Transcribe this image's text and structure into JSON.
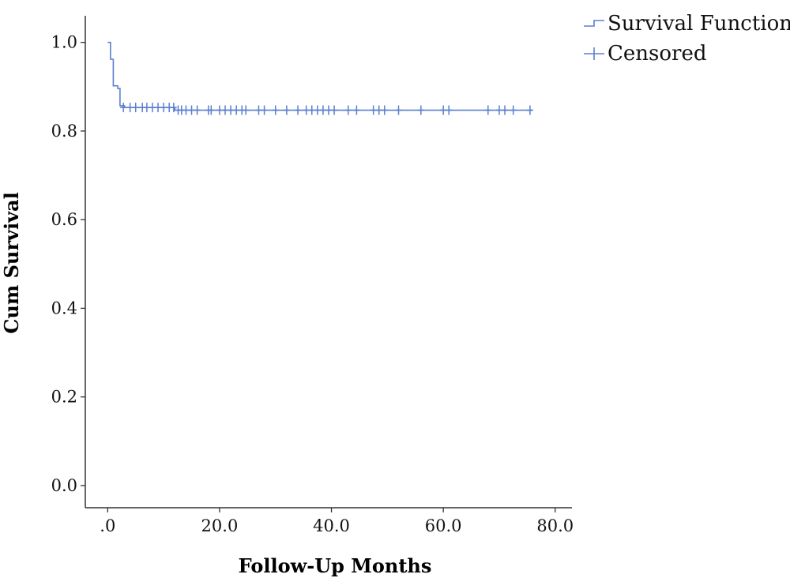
{
  "chart_data": {
    "type": "line",
    "title": "",
    "xlabel": "Follow-Up Months",
    "ylabel": "Cum Survival",
    "xlim": [
      -4,
      83
    ],
    "ylim": [
      -0.05,
      1.06
    ],
    "x_ticks": [
      0,
      20,
      40,
      60,
      80
    ],
    "x_tick_labels": [
      ".0",
      "20.0",
      "40.0",
      "60.0",
      "80.0"
    ],
    "y_ticks": [
      0,
      0.2,
      0.4,
      0.6,
      0.8,
      1.0
    ],
    "y_tick_labels": [
      "0.0",
      "0.2",
      "0.4",
      "0.6",
      "0.8",
      "1.0"
    ],
    "grid": false,
    "legend_position": "top-right",
    "legend": [
      "Survival Function",
      "Censored"
    ],
    "colors": {
      "series": "#5b7fd0",
      "axis": "#333333"
    },
    "series": [
      {
        "name": "Survival Function",
        "steps": [
          [
            0.0,
            1.0
          ],
          [
            0.5,
            0.962
          ],
          [
            1.0,
            0.902
          ],
          [
            1.8,
            0.896
          ],
          [
            2.2,
            0.857
          ],
          [
            3.0,
            0.853
          ],
          [
            12.0,
            0.847
          ],
          [
            76.0,
            0.847
          ]
        ]
      },
      {
        "name": "Censored",
        "points": [
          [
            2.8,
            0.853
          ],
          [
            4.0,
            0.853
          ],
          [
            5.0,
            0.853
          ],
          [
            6.2,
            0.853
          ],
          [
            7.0,
            0.853
          ],
          [
            8.0,
            0.853
          ],
          [
            9.0,
            0.853
          ],
          [
            10.0,
            0.853
          ],
          [
            11.0,
            0.853
          ],
          [
            11.8,
            0.853
          ],
          [
            12.6,
            0.847
          ],
          [
            13.2,
            0.847
          ],
          [
            14.0,
            0.847
          ],
          [
            15.0,
            0.847
          ],
          [
            16.0,
            0.847
          ],
          [
            18.0,
            0.847
          ],
          [
            18.5,
            0.847
          ],
          [
            20.0,
            0.847
          ],
          [
            21.0,
            0.847
          ],
          [
            22.0,
            0.847
          ],
          [
            23.0,
            0.847
          ],
          [
            24.0,
            0.847
          ],
          [
            24.7,
            0.847
          ],
          [
            27.0,
            0.847
          ],
          [
            28.0,
            0.847
          ],
          [
            30.0,
            0.847
          ],
          [
            32.0,
            0.847
          ],
          [
            34.0,
            0.847
          ],
          [
            35.5,
            0.847
          ],
          [
            36.5,
            0.847
          ],
          [
            37.5,
            0.847
          ],
          [
            38.5,
            0.847
          ],
          [
            39.5,
            0.847
          ],
          [
            40.5,
            0.847
          ],
          [
            43.0,
            0.847
          ],
          [
            44.5,
            0.847
          ],
          [
            47.5,
            0.847
          ],
          [
            48.5,
            0.847
          ],
          [
            49.5,
            0.847
          ],
          [
            52.0,
            0.847
          ],
          [
            56.0,
            0.847
          ],
          [
            60.0,
            0.847
          ],
          [
            61.0,
            0.847
          ],
          [
            68.0,
            0.847
          ],
          [
            70.0,
            0.847
          ],
          [
            71.0,
            0.847
          ],
          [
            72.5,
            0.847
          ],
          [
            75.5,
            0.847
          ]
        ]
      }
    ]
  }
}
